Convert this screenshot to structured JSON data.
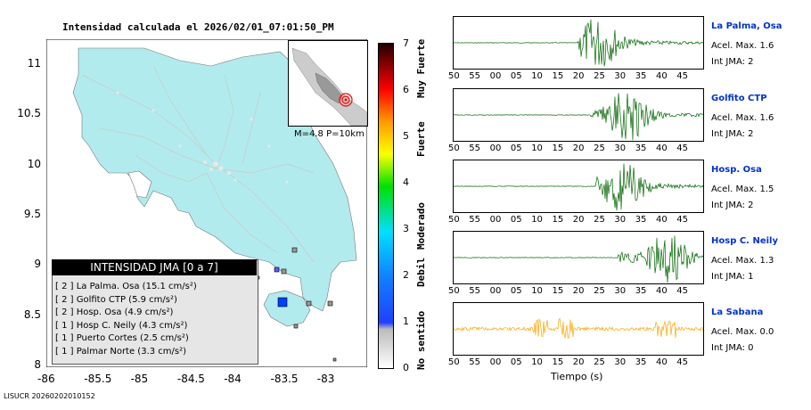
{
  "title": "Intensidad calculada el 2026/02/01_07:01:50_PM",
  "map": {
    "lat_ticks": [
      "11",
      "10.5",
      "10",
      "9.5",
      "9",
      "8.5",
      "8"
    ],
    "lon_ticks": [
      "-86",
      "-85.5",
      "-85",
      "-84.5",
      "-84",
      "-83.5",
      "-83"
    ],
    "land_color": "#b2ebed",
    "outside_color": "#ffffff"
  },
  "inset": {
    "label": "M=4.8 P=10km"
  },
  "legend": {
    "header": "INTENSIDAD JMA [0 a 7]",
    "rows": [
      "[ 2 ]  La Palma. Osa (15.1 cm/s²)",
      "[ 2 ]  Golfito CTP (5.9 cm/s²)",
      "[ 2 ]  Hosp. Osa (4.9 cm/s²)",
      "[ 1 ]  Hosp C. Neily (4.3 cm/s²)",
      "[ 1 ]  Puerto Cortes (2.5 cm/s²)",
      "[ 1 ]  Palmar Norte (3.3 cm/s²)"
    ]
  },
  "colorbar": {
    "numbers": [
      "7",
      "6",
      "5",
      "4",
      "3",
      "2",
      "1",
      "0"
    ],
    "words": [
      "Muy Fuerte",
      "Fuerte",
      "Moderado",
      "Debil",
      "No sentido"
    ]
  },
  "traces": {
    "time_ticks": [
      "50",
      "55",
      "00",
      "05",
      "10",
      "15",
      "20",
      "25",
      "30",
      "35",
      "40",
      "45"
    ],
    "x_title": "Tiempo (s)",
    "stations": [
      {
        "name": "La Palma, Osa",
        "acel": "Acel. Max. 1.6",
        "int": "Int JMA: 2",
        "color": "#006400",
        "start": 0.5,
        "peak": 0.58
      },
      {
        "name": "Golfito CTP",
        "acel": "Acel. Max. 1.6",
        "int": "Int JMA: 2",
        "color": "#006400",
        "start": 0.55,
        "peak": 0.7
      },
      {
        "name": "Hosp. Osa",
        "acel": "Acel. Max. 1.5",
        "int": "Int JMA: 2",
        "color": "#006400",
        "start": 0.57,
        "peak": 0.68
      },
      {
        "name": "Hosp C. Neily",
        "acel": "Acel. Max. 1.3",
        "int": "Int JMA: 1",
        "color": "#006400",
        "start": 0.66,
        "peak": 0.86
      },
      {
        "name": "La Sabana",
        "acel": "Acel. Max. 0.0",
        "int": "Int JMA: 0",
        "color": "#ffa500",
        "start": 0.0,
        "peak": 0.35
      }
    ]
  }
}
